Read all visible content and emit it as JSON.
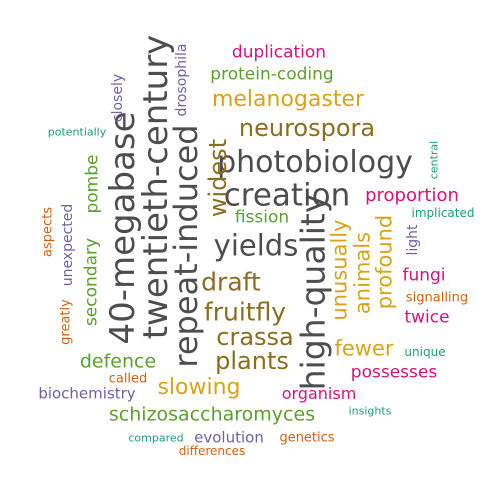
{
  "palette": {
    "gray": "#4d4d4d",
    "olive": "#8c6d1f",
    "gold": "#d9a319",
    "green": "#5aa02c",
    "magenta": "#d4127c",
    "purple": "#6b62a8",
    "orange": "#d65f0e",
    "teal": "#1b9e77"
  },
  "words": [
    {
      "text": "high-quality",
      "color": "gray",
      "size": "large",
      "vertical": true
    },
    {
      "text": "40-megabase",
      "color": "gray",
      "size": "large",
      "vertical": true
    },
    {
      "text": "twentieth-century",
      "color": "gray",
      "size": "large",
      "vertical": true
    },
    {
      "text": "repeat-induced",
      "color": "gray",
      "size": "large",
      "vertical": true
    },
    {
      "text": "photobiology",
      "color": "gray",
      "size": "large",
      "vertical": false
    },
    {
      "text": "creation",
      "color": "gray",
      "size": "large",
      "vertical": false
    },
    {
      "text": "yields",
      "color": "gray",
      "size": "large",
      "vertical": false
    },
    {
      "text": "draft",
      "color": "olive",
      "size": "medium",
      "vertical": false
    },
    {
      "text": "fruitfly",
      "color": "olive",
      "size": "medium",
      "vertical": false
    },
    {
      "text": "crassa",
      "color": "olive",
      "size": "medium",
      "vertical": false
    },
    {
      "text": "plants",
      "color": "olive",
      "size": "medium",
      "vertical": false
    },
    {
      "text": "neurospora",
      "color": "olive",
      "size": "medium",
      "vertical": false
    },
    {
      "text": "widest",
      "color": "olive",
      "size": "medium",
      "vertical": true
    },
    {
      "text": "melanogaster",
      "color": "gold",
      "size": "medium",
      "vertical": false
    },
    {
      "text": "slowing",
      "color": "gold",
      "size": "medium",
      "vertical": false
    },
    {
      "text": "fewer",
      "color": "gold",
      "size": "medium",
      "vertical": false
    },
    {
      "text": "unusually",
      "color": "gold",
      "size": "medium",
      "vertical": true
    },
    {
      "text": "animals",
      "color": "gold",
      "size": "medium",
      "vertical": true
    },
    {
      "text": "profound",
      "color": "gold",
      "size": "medium",
      "vertical": true
    },
    {
      "text": "protein-coding",
      "color": "green",
      "size": "small",
      "vertical": false
    },
    {
      "text": "fission",
      "color": "green",
      "size": "small",
      "vertical": false
    },
    {
      "text": "pombe",
      "color": "green",
      "size": "small",
      "vertical": true
    },
    {
      "text": "secondary",
      "color": "green",
      "size": "small",
      "vertical": true
    },
    {
      "text": "defence",
      "color": "green",
      "size": "small",
      "vertical": false
    },
    {
      "text": "schizosaccharomyces",
      "color": "green",
      "size": "small",
      "vertical": false
    },
    {
      "text": "duplication",
      "color": "magenta",
      "size": "small",
      "vertical": false
    },
    {
      "text": "proportion",
      "color": "magenta",
      "size": "small",
      "vertical": false
    },
    {
      "text": "fungi",
      "color": "magenta",
      "size": "small",
      "vertical": false
    },
    {
      "text": "twice",
      "color": "magenta",
      "size": "small",
      "vertical": false
    },
    {
      "text": "possesses",
      "color": "magenta",
      "size": "small",
      "vertical": false
    },
    {
      "text": "organism",
      "color": "magenta",
      "size": "small",
      "vertical": false
    },
    {
      "text": "drosophila",
      "color": "purple",
      "size": "tiny",
      "vertical": true
    },
    {
      "text": "closely",
      "color": "purple",
      "size": "tiny",
      "vertical": true
    },
    {
      "text": "light",
      "color": "purple",
      "size": "tiny",
      "vertical": true
    },
    {
      "text": "unexpected",
      "color": "purple",
      "size": "tiny",
      "vertical": true
    },
    {
      "text": "biochemistry",
      "color": "purple",
      "size": "tiny",
      "vertical": false
    },
    {
      "text": "evolution",
      "color": "purple",
      "size": "tiny",
      "vertical": false
    },
    {
      "text": "aspects",
      "color": "orange",
      "size": "tiny",
      "vertical": true
    },
    {
      "text": "greatly",
      "color": "orange",
      "size": "tiny",
      "vertical": true
    },
    {
      "text": "signalling",
      "color": "orange",
      "size": "tiny",
      "vertical": false
    },
    {
      "text": "called",
      "color": "orange",
      "size": "tiny",
      "vertical": false
    },
    {
      "text": "genetics",
      "color": "orange",
      "size": "tiny",
      "vertical": false
    },
    {
      "text": "differences",
      "color": "orange",
      "size": "tiny",
      "vertical": false
    },
    {
      "text": "potentially",
      "color": "teal",
      "size": "tiny",
      "vertical": false
    },
    {
      "text": "central",
      "color": "teal",
      "size": "tiny",
      "vertical": true
    },
    {
      "text": "implicated",
      "color": "teal",
      "size": "tiny",
      "vertical": false
    },
    {
      "text": "unique",
      "color": "teal",
      "size": "tiny",
      "vertical": false
    },
    {
      "text": "insights",
      "color": "teal",
      "size": "tiny",
      "vertical": false
    },
    {
      "text": "compared",
      "color": "teal",
      "size": "tiny",
      "vertical": false
    }
  ]
}
